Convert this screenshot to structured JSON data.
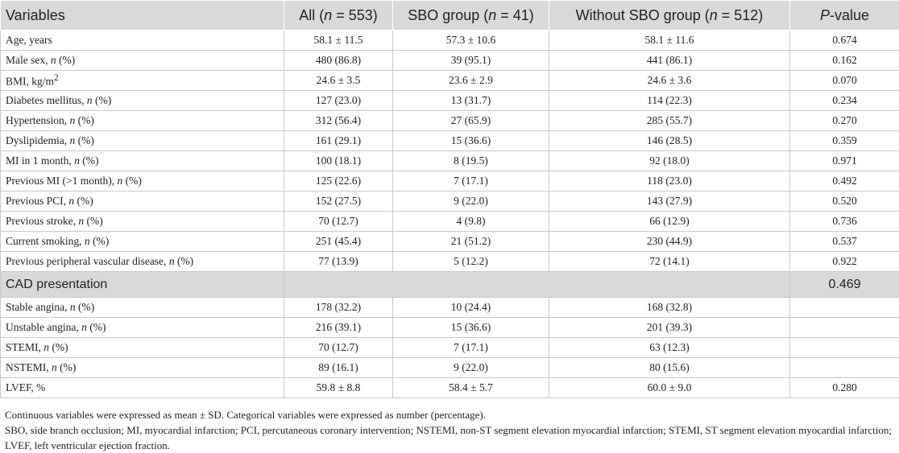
{
  "table": {
    "header": [
      [
        "Variables"
      ],
      [
        "All (",
        {
          "italic": "n"
        },
        " = 553)"
      ],
      [
        "SBO group (",
        {
          "italic": "n"
        },
        " = 41)"
      ],
      [
        "Without SBO group (",
        {
          "italic": "n"
        },
        " = 512)"
      ],
      [
        {
          "italic": "P"
        },
        "-value"
      ]
    ],
    "rows": [
      {
        "label": [
          "Age, years"
        ],
        "cells": [
          "58.1 ± 11.5",
          "57.3 ± 10.6",
          "58.1 ± 11.6",
          "0.674"
        ]
      },
      {
        "label": [
          "Male sex, ",
          {
            "italic": "n"
          },
          " (%)"
        ],
        "cells": [
          "480 (86.8)",
          "39 (95.1)",
          "441 (86.1)",
          "0.162"
        ]
      },
      {
        "label": [
          "BMI, kg/m",
          {
            "sup": "2"
          }
        ],
        "cells": [
          "24.6 ± 3.5",
          "23.6 ± 2.9",
          "24.6 ± 3.6",
          "0.070"
        ]
      },
      {
        "label": [
          "Diabetes mellitus, ",
          {
            "italic": "n"
          },
          " (%)"
        ],
        "cells": [
          "127 (23.0)",
          "13 (31.7)",
          "114 (22.3)",
          "0.234"
        ]
      },
      {
        "label": [
          "Hypertension, ",
          {
            "italic": "n"
          },
          " (%)"
        ],
        "cells": [
          "312 (56.4)",
          "27 (65.9)",
          "285 (55.7)",
          "0.270"
        ]
      },
      {
        "label": [
          "Dyslipidemia, ",
          {
            "italic": "n"
          },
          " (%)"
        ],
        "cells": [
          "161 (29.1)",
          "15 (36.6)",
          "146 (28.5)",
          "0.359"
        ]
      },
      {
        "label": [
          "MI in 1 month, ",
          {
            "italic": "n"
          },
          " (%)"
        ],
        "cells": [
          "100 (18.1)",
          "8 (19.5)",
          "92 (18.0)",
          "0.971"
        ]
      },
      {
        "label": [
          "Previous MI (>1 month), ",
          {
            "italic": "n"
          },
          " (%)"
        ],
        "cells": [
          "125 (22.6)",
          "7 (17.1)",
          "118 (23.0)",
          "0.492"
        ]
      },
      {
        "label": [
          "Previous PCI, ",
          {
            "italic": "n"
          },
          " (%)"
        ],
        "cells": [
          "152 (27.5)",
          "9 (22.0)",
          "143 (27.9)",
          "0.520"
        ]
      },
      {
        "label": [
          "Previous stroke, ",
          {
            "italic": "n"
          },
          " (%)"
        ],
        "cells": [
          "70 (12.7)",
          "4 (9.8)",
          "66 (12.9)",
          "0.736"
        ]
      },
      {
        "label": [
          "Current smoking, ",
          {
            "italic": "n"
          },
          " (%)"
        ],
        "cells": [
          "251 (45.4)",
          "21 (51.2)",
          "230 (44.9)",
          "0.537"
        ]
      },
      {
        "label": [
          "Previous peripheral vascular disease, ",
          {
            "italic": "n"
          },
          " (%)"
        ],
        "cells": [
          "77 (13.9)",
          "5 (12.2)",
          "72 (14.1)",
          "0.922"
        ]
      },
      {
        "label": [
          "CAD presentation"
        ],
        "group": true,
        "cells": [
          "0.469"
        ]
      },
      {
        "label": [
          "Stable angina, ",
          {
            "italic": "n"
          },
          " (%)"
        ],
        "cells": [
          "178 (32.2)",
          "10 (24.4)",
          "168 (32.8)",
          null
        ]
      },
      {
        "label": [
          "Unstable angina, ",
          {
            "italic": "n"
          },
          " (%)"
        ],
        "cells": [
          "216 (39.1)",
          "15 (36.6)",
          "201 (39.3)",
          null
        ]
      },
      {
        "label": [
          "STEMI, ",
          {
            "italic": "n"
          },
          " (%)"
        ],
        "cells": [
          "70 (12.7)",
          "7 (17.1)",
          "63 (12.3)",
          null
        ]
      },
      {
        "label": [
          "NSTEMI, ",
          {
            "italic": "n"
          },
          " (%)"
        ],
        "cells": [
          "89 (16.1)",
          "9 (22.0)",
          "80 (15.6)",
          null
        ]
      },
      {
        "label": [
          "LVEF, %"
        ],
        "cells": [
          "59.8 ± 8.8",
          "58.4 ± 5.7",
          "60.0 ± 9.0",
          "0.280"
        ]
      }
    ]
  },
  "notes": [
    "Continuous variables were expressed as mean ± SD. Categorical variables were expressed as number (percentage).",
    "SBO, side branch occlusion; MI, myocardial infarction; PCI, percutaneous coronary intervention; NSTEMI, non-ST segment elevation myocardial infarction; STEMI, ST segment elevation myocardial infarction; LVEF, left ventricular ejection fraction."
  ]
}
